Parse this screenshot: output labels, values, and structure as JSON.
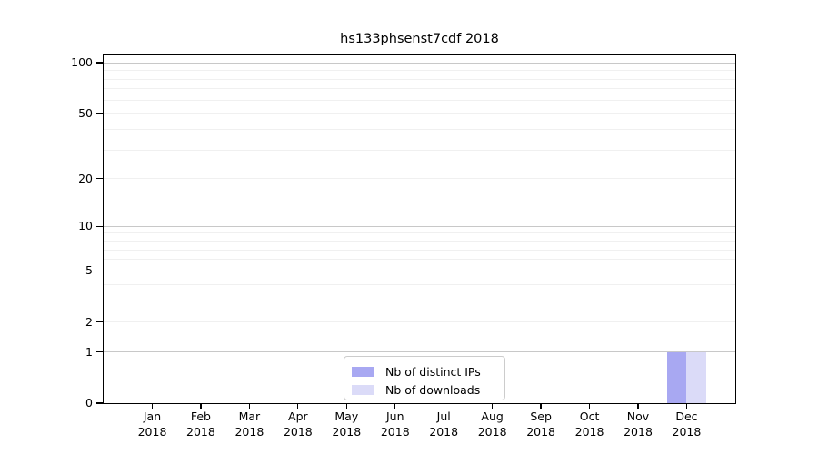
{
  "title": "hs133phsenst7cdf 2018",
  "chart_data": {
    "type": "bar",
    "title": "hs133phsenst7cdf 2018",
    "months": [
      "Jan",
      "Feb",
      "Mar",
      "Apr",
      "May",
      "Jun",
      "Jul",
      "Aug",
      "Sep",
      "Oct",
      "Nov",
      "Dec"
    ],
    "year": "2018",
    "series": [
      {
        "name": "Nb of distinct IPs",
        "color": "#a8a8f2",
        "values": [
          0,
          0,
          0,
          0,
          0,
          0,
          0,
          0,
          0,
          0,
          0,
          1
        ]
      },
      {
        "name": "Nb of downloads",
        "color": "#dbdbf8",
        "values": [
          0,
          0,
          0,
          0,
          0,
          0,
          0,
          0,
          0,
          0,
          0,
          1
        ]
      }
    ],
    "yscale": "log1p",
    "ylim": [
      0,
      112
    ],
    "y_major_ticks": [
      0,
      1,
      2,
      5,
      10,
      20,
      50,
      100
    ],
    "y_major_gridlines": [
      1,
      10,
      100
    ],
    "y_minor_gridlines": [
      2,
      3,
      4,
      5,
      6,
      7,
      8,
      9,
      20,
      30,
      40,
      50,
      60,
      70,
      80,
      90
    ],
    "grid": true,
    "legend_position": "lower center",
    "xlabel": "",
    "ylabel": ""
  },
  "colors": {
    "major_grid": "#c8c8c8",
    "minor_grid": "#f0f0f0",
    "spine": "#000000",
    "legend_border": "#cccccc",
    "background": "#ffffff"
  }
}
